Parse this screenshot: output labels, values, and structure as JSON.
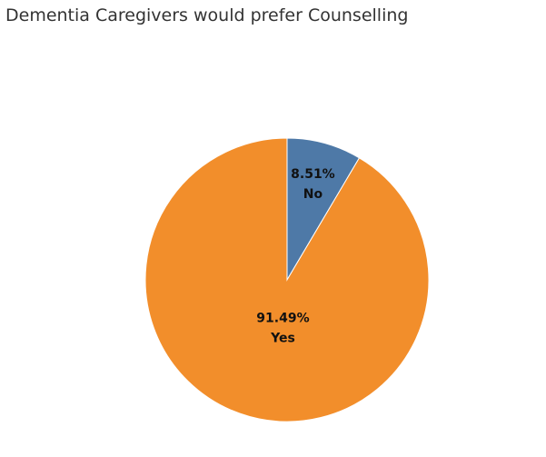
{
  "chart_data": {
    "type": "pie",
    "title": "Dementia Caregivers would prefer Counselling",
    "slices": [
      {
        "label": "No",
        "value": 8.51,
        "value_label": "8.51%",
        "color": "#4e79a7"
      },
      {
        "label": "Yes",
        "value": 91.49,
        "value_label": "91.49%",
        "color": "#f28e2b"
      }
    ],
    "legend": "none",
    "start": "top",
    "direction": "clockwise"
  }
}
